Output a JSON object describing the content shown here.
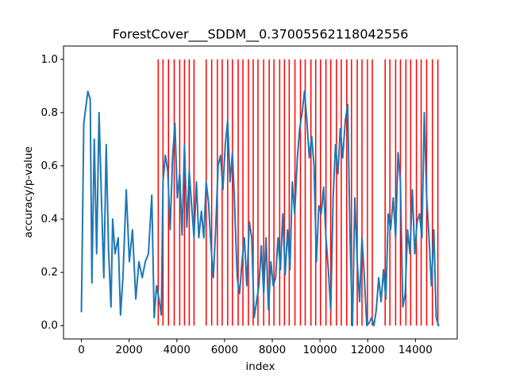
{
  "chart_data": {
    "type": "line",
    "title": "ForestCover___SDDM__0.37005562118042556",
    "x_label": "index",
    "y_label": "accuracy/p-value",
    "x": [
      0,
      100,
      200,
      270,
      370,
      440,
      540,
      640,
      740,
      840,
      940,
      1040,
      1140,
      1240,
      1310,
      1410,
      1540,
      1640,
      1740,
      1880,
      2010,
      2140,
      2280,
      2410,
      2550,
      2680,
      2810,
      2950,
      3050,
      3150,
      3250,
      3350,
      3420,
      3520,
      3620,
      3720,
      3820,
      3920,
      4020,
      4120,
      4220,
      4320,
      4420,
      4520,
      4620,
      4720,
      4820,
      4920,
      5030,
      5130,
      5230,
      5330,
      5430,
      5530,
      5630,
      5730,
      5830,
      5930,
      6030,
      6130,
      6230,
      6330,
      6430,
      6530,
      6630,
      6730,
      6830,
      6930,
      7040,
      7140,
      7240,
      7340,
      7440,
      7540,
      7640,
      7740,
      7840,
      7940,
      8040,
      8140,
      8240,
      8340,
      8440,
      8540,
      8640,
      8740,
      8840,
      8940,
      9050,
      9150,
      9250,
      9350,
      9450,
      9550,
      9650,
      9750,
      9850,
      9950,
      10050,
      10150,
      10250,
      10350,
      10450,
      10550,
      10650,
      10750,
      10850,
      10950,
      11060,
      11160,
      11260,
      11360,
      11460,
      11560,
      11660,
      11760,
      11860,
      11960,
      12060,
      12160,
      12260,
      12360,
      12460,
      12560,
      12660,
      12760,
      12860,
      12960,
      13070,
      13170,
      13270,
      13370,
      13470,
      13570,
      13670,
      13770,
      13870,
      13970,
      14070,
      14170,
      14270,
      14370,
      14470,
      14570,
      14670,
      14770,
      14870,
      14970,
      15000
    ],
    "series": [
      {
        "color": "#1f77b4",
        "values": [
          0.05,
          0.76,
          0.83,
          0.88,
          0.85,
          0.16,
          0.7,
          0.27,
          0.8,
          0.48,
          0.18,
          0.68,
          0.28,
          0.07,
          0.4,
          0.27,
          0.33,
          0.04,
          0.18,
          0.51,
          0.24,
          0.36,
          0.1,
          0.24,
          0.18,
          0.24,
          0.27,
          0.49,
          0.03,
          0.15,
          0.1,
          0.04,
          0.54,
          0.64,
          0.58,
          0.36,
          0.63,
          0.76,
          0.48,
          0.57,
          0.34,
          0.68,
          0.37,
          0.58,
          0.45,
          0.33,
          0.54,
          0.33,
          0.43,
          0.33,
          0.54,
          0.46,
          0.3,
          0.18,
          0.37,
          0.6,
          0.64,
          0.51,
          0.68,
          0.77,
          0.54,
          0.65,
          0.43,
          0.18,
          0.12,
          0.24,
          0.33,
          0.15,
          0.39,
          0.33,
          0.03,
          0.09,
          0.15,
          0.3,
          0.12,
          0.33,
          0.06,
          0.24,
          0.15,
          0.18,
          0.33,
          0.21,
          0.42,
          0.19,
          0.36,
          0.21,
          0.54,
          0.42,
          0.63,
          0.74,
          0.8,
          0.88,
          0.77,
          0.63,
          0.71,
          0.6,
          0.24,
          0.45,
          0.42,
          0.52,
          0.33,
          0.21,
          0.06,
          0.48,
          0.68,
          0.57,
          0.74,
          0.63,
          0.77,
          0.83,
          0.33,
          0.0,
          0.48,
          0.24,
          0.09,
          0.33,
          0.18,
          0.0,
          0.01,
          0.03,
          0.0,
          0.06,
          0.18,
          0.09,
          0.21,
          0.1,
          0.42,
          0.36,
          0.48,
          0.33,
          0.65,
          0.54,
          0.07,
          0.12,
          0.36,
          0.27,
          0.51,
          0.27,
          0.39,
          0.42,
          0.33,
          0.8,
          0.48,
          0.33,
          0.15,
          0.36,
          0.03,
          0.0,
          0.0
        ]
      }
    ],
    "vlines": {
      "color": "#ff0000",
      "ymin": 0,
      "ymax": 1,
      "x": [
        3220,
        3420,
        3650,
        3890,
        4120,
        4320,
        4520,
        4720,
        5230,
        5460,
        5700,
        5900,
        6130,
        6330,
        6570,
        6770,
        7000,
        7200,
        7400,
        7640,
        7870,
        8070,
        8310,
        8510,
        8710,
        8950,
        9180,
        9380,
        9620,
        9820,
        10020,
        10250,
        10450,
        10690,
        10890,
        11120,
        11320,
        11560,
        11760,
        11990,
        12190,
        12730,
        12930,
        13170,
        13370,
        13600,
        13800,
        14040,
        14240,
        14470,
        14710,
        14940
      ]
    },
    "xlim": [
      -750,
      15750
    ],
    "ylim": [
      -0.05,
      1.05
    ],
    "xticks": [
      0,
      2000,
      4000,
      6000,
      8000,
      10000,
      12000,
      14000
    ],
    "yticks": [
      {
        "value": 0,
        "label": "0.0"
      },
      0.2,
      0.4,
      0.6,
      0.8,
      {
        "value": 1,
        "label": "1.0"
      }
    ]
  }
}
